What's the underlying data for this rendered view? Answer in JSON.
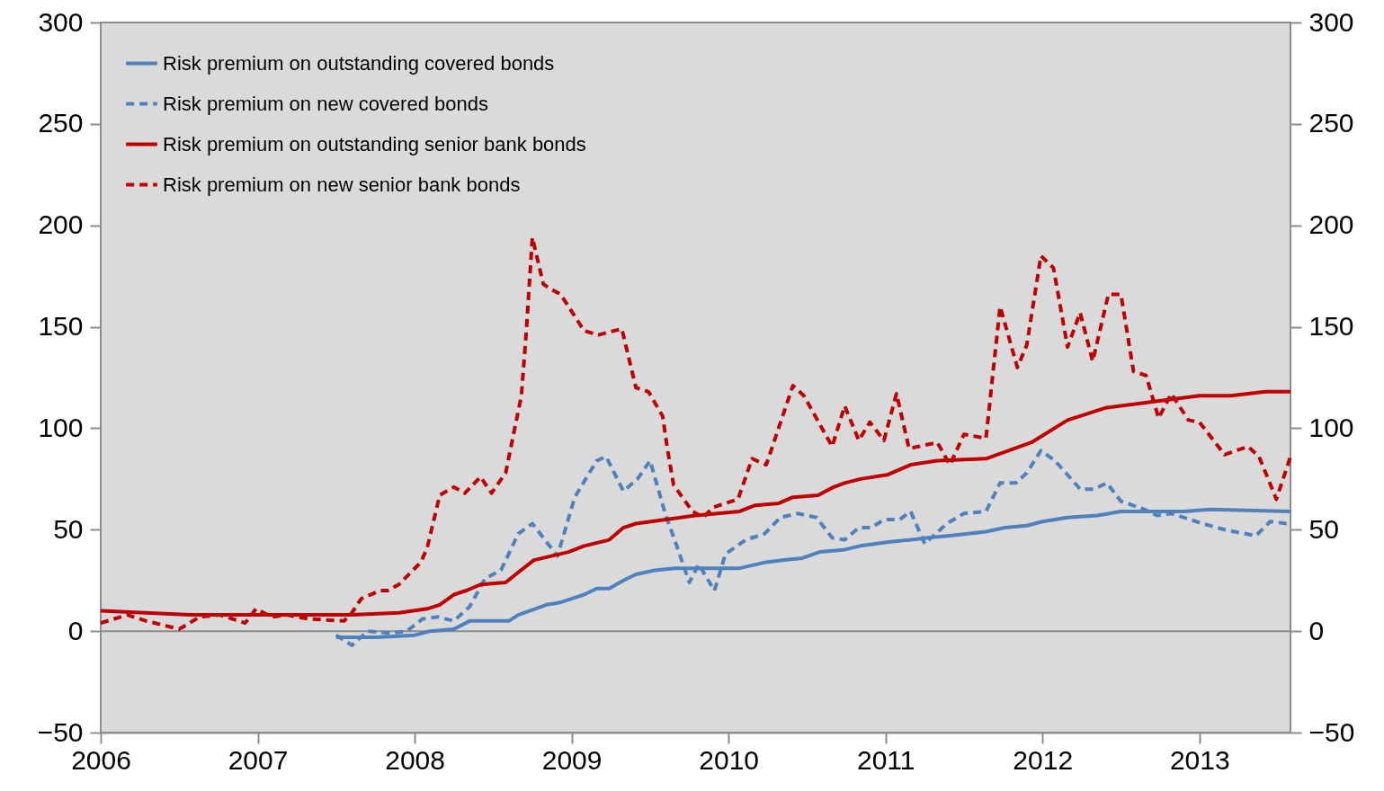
{
  "chart_data": {
    "type": "line",
    "xlim": [
      2006,
      2013.58
    ],
    "xticks": [
      2006,
      2007,
      2008,
      2009,
      2010,
      2011,
      2012,
      2013
    ],
    "ylim": [
      -50,
      300
    ],
    "yticks": [
      -50,
      0,
      50,
      100,
      150,
      200,
      250,
      300
    ],
    "y2lim": [
      -50,
      300
    ],
    "y2ticks": [
      -50,
      0,
      50,
      100,
      150,
      200,
      250,
      300
    ],
    "grid": false,
    "legend": "top left",
    "ref_lines": [
      {
        "axis": "y",
        "value": 0,
        "color": "#8c8c8c"
      }
    ],
    "series": [
      {
        "name": "Risk premium on outstanding covered bonds",
        "color": "#4f81bd",
        "line_style": "solid",
        "x": [
          2007.5,
          2007.75,
          2008.0,
          2008.1,
          2008.25,
          2008.35,
          2008.6,
          2008.66,
          2008.84,
          2008.92,
          2009.0,
          2009.08,
          2009.16,
          2009.24,
          2009.33,
          2009.41,
          2009.53,
          2009.66,
          2010.07,
          2010.24,
          2010.34,
          2010.47,
          2010.58,
          2010.73,
          2010.84,
          2011.03,
          2011.16,
          2011.27,
          2011.41,
          2011.64,
          2011.76,
          2011.9,
          2012.0,
          2012.16,
          2012.35,
          2012.5,
          2012.9,
          2013.07,
          2013.58
        ],
        "values": [
          -3,
          -3,
          -2,
          0,
          1,
          5,
          5,
          8,
          13,
          14,
          16,
          18,
          21,
          21,
          25,
          28,
          30,
          31,
          31,
          34,
          35,
          36,
          39,
          40,
          42,
          44,
          45,
          46,
          47,
          49,
          51,
          52,
          54,
          56,
          57,
          59,
          59,
          60,
          59
        ]
      },
      {
        "name": "Risk premium on new covered bonds",
        "color": "#4f81bd",
        "line_style": "dashed",
        "x": [
          2007.5,
          2007.6,
          2007.7,
          2007.85,
          2007.95,
          2008.05,
          2008.15,
          2008.25,
          2008.35,
          2008.45,
          2008.55,
          2008.66,
          2008.75,
          2008.91,
          2009.02,
          2009.16,
          2009.22,
          2009.33,
          2009.42,
          2009.5,
          2009.6,
          2009.67,
          2009.75,
          2009.81,
          2009.91,
          2009.98,
          2010.11,
          2010.23,
          2010.33,
          2010.44,
          2010.56,
          2010.66,
          2010.74,
          2010.83,
          2010.91,
          2010.99,
          2011.09,
          2011.16,
          2011.25,
          2011.39,
          2011.5,
          2011.64,
          2011.73,
          2011.83,
          2011.9,
          2011.99,
          2012.08,
          2012.24,
          2012.33,
          2012.41,
          2012.5,
          2012.65,
          2012.73,
          2012.82,
          2013.02,
          2013.16,
          2013.36,
          2013.45,
          2013.56
        ],
        "values": [
          -2,
          -7,
          0,
          -1,
          0,
          6,
          7,
          5,
          12,
          26,
          30,
          48,
          53,
          37,
          66,
          84,
          86,
          69,
          75,
          84,
          57,
          42,
          24,
          33,
          20,
          38,
          45,
          48,
          56,
          58,
          56,
          46,
          45,
          51,
          51,
          55,
          55,
          59,
          43,
          53,
          58,
          59,
          73,
          73,
          78,
          89,
          84,
          70,
          70,
          73,
          64,
          60,
          57,
          58,
          53,
          50,
          47,
          54,
          53
        ]
      },
      {
        "name": "Risk premium on outstanding senior bank bonds",
        "color": "#c00000",
        "line_style": "solid",
        "x": [
          2006.0,
          2006.57,
          2007.6,
          2007.9,
          2008.08,
          2008.16,
          2008.25,
          2008.33,
          2008.42,
          2008.58,
          2008.66,
          2008.76,
          2008.98,
          2009.08,
          2009.24,
          2009.33,
          2009.41,
          2009.6,
          2009.79,
          2010.07,
          2010.17,
          2010.32,
          2010.41,
          2010.57,
          2010.67,
          2010.74,
          2010.84,
          2011.01,
          2011.16,
          2011.33,
          2011.64,
          2011.93,
          2012.16,
          2012.4,
          2012.7,
          2013.0,
          2013.2,
          2013.42,
          2013.58
        ],
        "values": [
          10,
          8,
          8,
          9,
          11,
          13,
          18,
          20,
          23,
          24,
          29,
          35,
          39,
          42,
          45,
          51,
          53,
          55,
          57,
          59,
          62,
          63,
          66,
          67,
          71,
          73,
          75,
          77,
          82,
          84,
          85,
          93,
          104,
          110,
          113,
          116,
          116,
          118,
          118
        ]
      },
      {
        "name": "Risk premium on new senior bank bonds",
        "color": "#c00000",
        "line_style": "dashed",
        "x": [
          2006.0,
          2006.17,
          2006.29,
          2006.5,
          2006.63,
          2006.76,
          2006.92,
          2006.99,
          2007.09,
          2007.18,
          2007.33,
          2007.55,
          2007.6,
          2007.66,
          2007.78,
          2007.83,
          2007.9,
          2008.04,
          2008.08,
          2008.16,
          2008.25,
          2008.32,
          2008.42,
          2008.49,
          2008.58,
          2008.68,
          2008.71,
          2008.75,
          2008.82,
          2008.86,
          2008.93,
          2009.08,
          2009.17,
          2009.32,
          2009.41,
          2009.49,
          2009.58,
          2009.61,
          2009.65,
          2009.77,
          2009.84,
          2009.9,
          2010.06,
          2010.15,
          2010.24,
          2010.41,
          2010.48,
          2010.66,
          2010.74,
          2010.83,
          2010.9,
          2010.99,
          2011.07,
          2011.15,
          2011.33,
          2011.41,
          2011.5,
          2011.64,
          2011.73,
          2011.84,
          2011.9,
          2011.99,
          2012.07,
          2012.16,
          2012.24,
          2012.32,
          2012.42,
          2012.5,
          2012.58,
          2012.66,
          2012.74,
          2012.82,
          2012.93,
          2013.0,
          2013.16,
          2013.31,
          2013.38,
          2013.49,
          2013.58
        ],
        "values": [
          4,
          8,
          5,
          1,
          7,
          8,
          4,
          11,
          7,
          8,
          6,
          5,
          9,
          16,
          20,
          20,
          23,
          34,
          41,
          67,
          71,
          68,
          76,
          68,
          78,
          116,
          146,
          194,
          171,
          169,
          166,
          148,
          146,
          149,
          120,
          118,
          106,
          90,
          72,
          59,
          56,
          61,
          65,
          85,
          82,
          121,
          116,
          91,
          111,
          94,
          103,
          94,
          117,
          90,
          93,
          82,
          97,
          95,
          160,
          130,
          141,
          185,
          179,
          140,
          157,
          133,
          166,
          166,
          128,
          126,
          105,
          117,
          104,
          103,
          87,
          91,
          86,
          65,
          86
        ]
      }
    ]
  }
}
